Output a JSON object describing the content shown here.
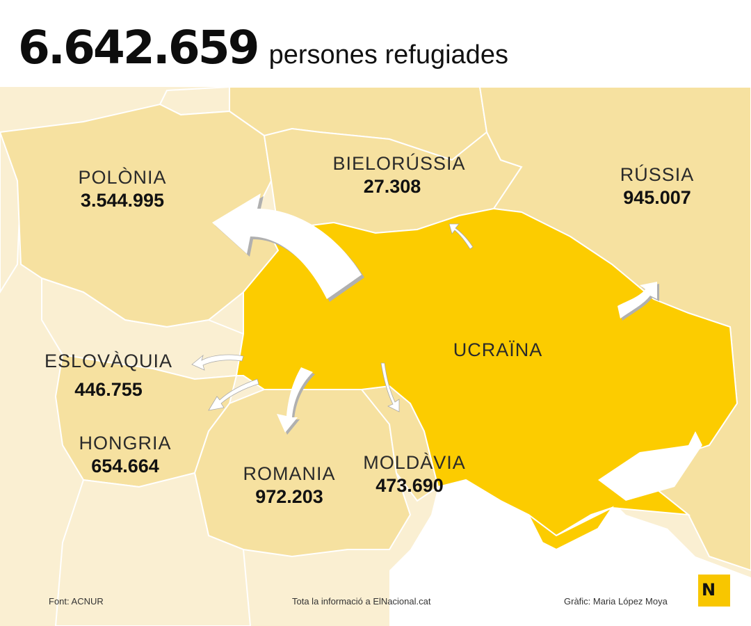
{
  "header": {
    "total": "6.642.659",
    "subtitle": "persones refugiades"
  },
  "countries": {
    "polonia": {
      "name": "POLÒNIA",
      "value": "3.544.995"
    },
    "bielorussia": {
      "name": "BIELORÚSSIA",
      "value": "27.308"
    },
    "russia": {
      "name": "RÚSSIA",
      "value": "945.007"
    },
    "ucraina": {
      "name": "UCRAÏNA"
    },
    "eslovaquia": {
      "name": "ESLOVÀQUIA",
      "value": "446.755"
    },
    "hongria": {
      "name": "HONGRIA",
      "value": "654.664"
    },
    "romania": {
      "name": "ROMANIA",
      "value": "972.203"
    },
    "moldavia": {
      "name": "MOLDÀVIA",
      "value": "473.690"
    }
  },
  "footer": {
    "source": "Font: ACNUR",
    "info": "Tota la informació a ElNacional.cat",
    "credit": "Gràfic: Maria López Moya"
  },
  "logo": {
    "letter": "N"
  },
  "colors": {
    "ukraine": "#fccc00",
    "neighbor": "#f6e1a0",
    "far": "#faefd2",
    "border": "#ffffff",
    "logo": "#f8c600"
  }
}
